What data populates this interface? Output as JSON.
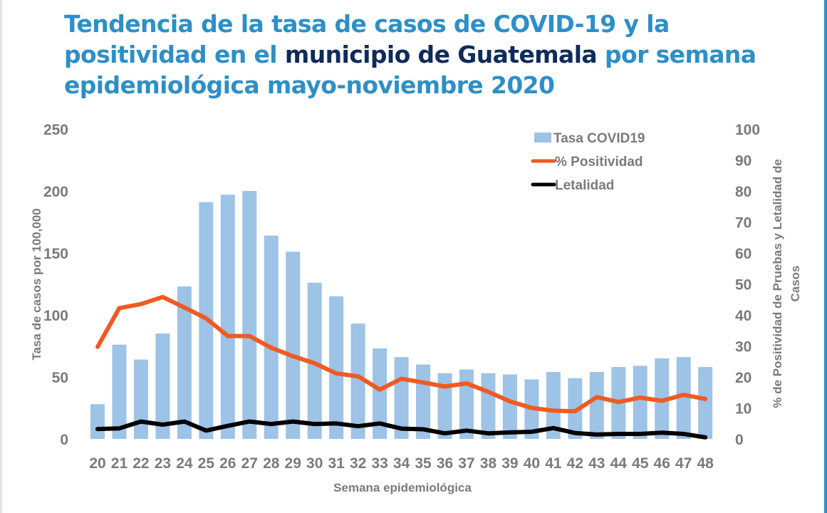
{
  "title": {
    "part1": "Tendencia de la tasa de casos de COVID-19 y la positividad en el ",
    "highlight": "municipio de Guatemala",
    "part2": " por semana epidemiológica mayo-noviembre 2020"
  },
  "colors": {
    "title": "#2e8fc6",
    "title_highlight": "#0f2b5b",
    "bars": "#9dc3e6",
    "positividad": "#f05a22",
    "letalidad": "#000000",
    "axis_text": "#7a7a7a",
    "frame_accent": "#2f8fc4"
  },
  "chart_data": {
    "type": "bar",
    "title": "Tendencia de la tasa de casos de COVID-19 y la positividad en el municipio de Guatemala por semana epidemiológica mayo-noviembre 2020",
    "xlabel": "Semana epidemiológica",
    "ylabel": "Tasa de casos por 100,000",
    "y2label": "% de Positividad de Pruebas y Letalidad de Casos",
    "ylim": [
      0,
      250
    ],
    "y2lim": [
      0,
      100
    ],
    "yticks": [
      0,
      50,
      100,
      150,
      200,
      250
    ],
    "y2ticks": [
      0,
      10,
      20,
      30,
      40,
      50,
      60,
      70,
      80,
      90,
      100
    ],
    "grid": false,
    "legend_position": "top-right",
    "categories": [
      "20",
      "21",
      "22",
      "23",
      "24",
      "25",
      "26",
      "27",
      "28",
      "29",
      "30",
      "31",
      "32",
      "33",
      "34",
      "35",
      "36",
      "37",
      "38",
      "39",
      "40",
      "41",
      "42",
      "43",
      "44",
      "45",
      "46",
      "47",
      "48"
    ],
    "series": [
      {
        "name": "Tasa COVID19",
        "type": "bar",
        "axis": "left",
        "values": [
          28,
          76,
          64,
          85,
          123,
          191,
          197,
          200,
          164,
          151,
          126,
          115,
          93,
          73,
          66,
          60,
          53,
          56,
          53,
          52,
          48,
          54,
          49,
          54,
          58,
          59,
          65,
          66,
          58
        ]
      },
      {
        "name": "% Positividad",
        "type": "line",
        "axis": "right",
        "values": [
          29.7,
          42.2,
          43.5,
          45.8,
          42.4,
          38.9,
          33.2,
          33.2,
          29.4,
          26.7,
          24.4,
          21.1,
          20.2,
          15.9,
          19.4,
          18.2,
          16.9,
          17.9,
          15.2,
          12.1,
          10.0,
          9.1,
          8.9,
          13.5,
          11.9,
          13.3,
          12.3,
          14.2,
          12.9
        ]
      },
      {
        "name": "Letalidad",
        "type": "line",
        "axis": "right",
        "values": [
          3.2,
          3.4,
          5.6,
          4.6,
          5.6,
          2.7,
          4.2,
          5.6,
          4.8,
          5.6,
          4.8,
          5.0,
          4.1,
          5.0,
          3.3,
          3.1,
          1.8,
          2.7,
          1.8,
          2.1,
          2.3,
          3.5,
          1.9,
          1.4,
          1.6,
          1.6,
          2.0,
          1.6,
          0.5
        ]
      }
    ]
  }
}
